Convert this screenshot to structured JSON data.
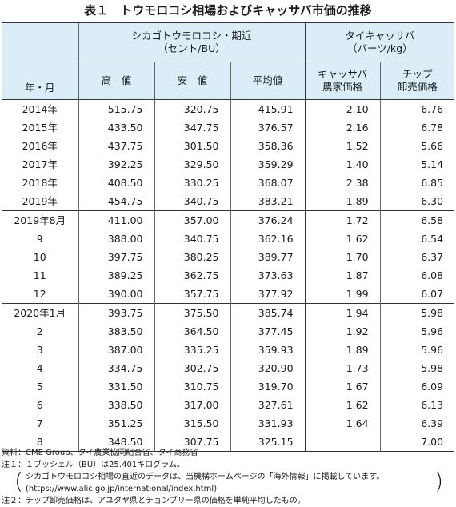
{
  "title": "表１　トウモロコシ相場およびキャッサバ市価の推移",
  "header": {
    "row_label": "年・月",
    "group1": "シカゴトウモロコシ・期近",
    "group1_unit": "（セント/BU）",
    "group2": "タイキャッサバ",
    "group2_unit": "（バーツ/kg）",
    "cols": {
      "high": "高　値",
      "low": "安　値",
      "avg": "平均値",
      "farm_1": "キャッサバ",
      "farm_2": "農家価格",
      "chip_1": "チップ",
      "chip_2": "卸売価格"
    }
  },
  "rows": [
    {
      "label": "2014年",
      "high": "515.75",
      "low": "320.75",
      "avg": "415.91",
      "farm": "2.10",
      "chip": "6.76"
    },
    {
      "label": "2015年",
      "high": "433.50",
      "low": "347.75",
      "avg": "376.57",
      "farm": "2.16",
      "chip": "6.78"
    },
    {
      "label": "2016年",
      "high": "437.75",
      "low": "301.50",
      "avg": "358.36",
      "farm": "1.52",
      "chip": "5.66"
    },
    {
      "label": "2017年",
      "high": "392.25",
      "low": "329.50",
      "avg": "359.29",
      "farm": "1.40",
      "chip": "5.14"
    },
    {
      "label": "2018年",
      "high": "408.50",
      "low": "330.25",
      "avg": "368.07",
      "farm": "2.38",
      "chip": "6.85"
    },
    {
      "label": "2019年",
      "high": "454.75",
      "low": "340.75",
      "avg": "383.21",
      "farm": "1.89",
      "chip": "6.30"
    },
    {
      "label": "2019年8月",
      "high": "411.00",
      "low": "357.00",
      "avg": "376.24",
      "farm": "1.72",
      "chip": "6.58"
    },
    {
      "label": "9",
      "high": "388.00",
      "low": "340.75",
      "avg": "362.16",
      "farm": "1.62",
      "chip": "6.54"
    },
    {
      "label": "10",
      "high": "397.75",
      "low": "380.25",
      "avg": "389.77",
      "farm": "1.70",
      "chip": "6.37"
    },
    {
      "label": "11",
      "high": "389.25",
      "low": "362.75",
      "avg": "373.63",
      "farm": "1.87",
      "chip": "6.08"
    },
    {
      "label": "12",
      "high": "390.00",
      "low": "357.75",
      "avg": "377.92",
      "farm": "1.99",
      "chip": "6.07"
    },
    {
      "label": "2020年1月",
      "high": "393.75",
      "low": "375.50",
      "avg": "385.74",
      "farm": "1.94",
      "chip": "5.98"
    },
    {
      "label": "2",
      "high": "383.50",
      "low": "364.50",
      "avg": "377.45",
      "farm": "1.92",
      "chip": "5.96"
    },
    {
      "label": "3",
      "high": "387.00",
      "low": "335.25",
      "avg": "359.93",
      "farm": "1.89",
      "chip": "5.96"
    },
    {
      "label": "4",
      "high": "334.75",
      "low": "302.75",
      "avg": "320.90",
      "farm": "1.73",
      "chip": "5.98"
    },
    {
      "label": "5",
      "high": "331.50",
      "low": "310.75",
      "avg": "319.70",
      "farm": "1.67",
      "chip": "6.09"
    },
    {
      "label": "6",
      "high": "338.50",
      "low": "317.00",
      "avg": "327.61",
      "farm": "1.62",
      "chip": "6.13"
    },
    {
      "label": "7",
      "high": "351.25",
      "low": "315.50",
      "avg": "331.93",
      "farm": "1.64",
      "chip": "6.39"
    },
    {
      "label": "8",
      "high": "348.50",
      "low": "307.75",
      "avg": "325.15",
      "farm": "",
      "chip": "7.00"
    }
  ],
  "notes": {
    "source": "資料：CME Group、タイ農業協同組合省、タイ商務省",
    "note1": "注１：１ブッシェル（BU）は25.401キログラム。",
    "note1_sub1": "シカゴトウモロコシ相場の直近のデータは、当機構ホームページの「海外情報」に掲載しています。",
    "note1_sub2": "(https://www.alic.go.jp/international/index.html)",
    "note2": "注２：チップ卸売価格は、アユタヤ県とチョンブリー県の価格を単純平均したもの。"
  }
}
